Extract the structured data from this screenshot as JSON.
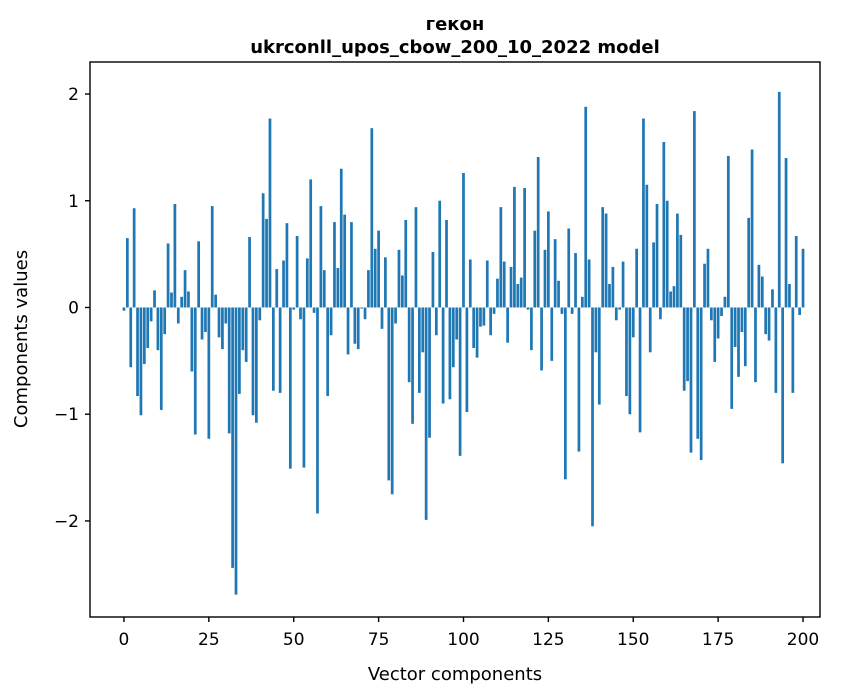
{
  "figure": {
    "title_line1": "гекон",
    "title_line2": "ukrconll_upos_cbow_200_10_2022 model",
    "xlabel": "Vector components",
    "ylabel": "Components values"
  },
  "chart_data": {
    "type": "bar",
    "title": "гекон — ukrconll_upos_cbow_200_10_2022 model",
    "xlabel": "Vector components",
    "ylabel": "Components values",
    "x_start": 0,
    "x_step": 1,
    "bar_color": "#1f77b4",
    "background": "#ffffff",
    "grid": false,
    "legend": false,
    "xticks": [
      0,
      25,
      50,
      75,
      100,
      125,
      150,
      175,
      200
    ],
    "yticks": [
      -2,
      -1,
      0,
      1,
      2
    ],
    "xlim": [
      -10,
      205
    ],
    "ylim": [
      -2.9,
      2.3
    ],
    "values": [
      -0.03,
      0.65,
      -0.56,
      0.93,
      -0.83,
      -1.01,
      -0.53,
      -0.38,
      -0.13,
      0.16,
      -0.4,
      -0.96,
      -0.25,
      0.6,
      0.14,
      0.97,
      -0.15,
      0.1,
      0.35,
      0.15,
      -0.6,
      -1.19,
      0.62,
      -0.3,
      -0.23,
      -1.23,
      0.95,
      0.12,
      -0.28,
      -0.39,
      -0.15,
      -1.18,
      -2.44,
      -2.69,
      -0.81,
      -0.4,
      -0.51,
      0.66,
      -1.01,
      -1.08,
      -0.12,
      1.07,
      0.83,
      1.77,
      -0.78,
      0.36,
      -0.8,
      0.44,
      0.79,
      -1.51,
      -0.02,
      0.67,
      -0.11,
      -1.5,
      0.46,
      1.2,
      -0.05,
      -1.93,
      0.95,
      0.35,
      -0.83,
      -0.26,
      0.8,
      0.37,
      1.3,
      0.87,
      -0.44,
      0.8,
      -0.34,
      -0.39,
      -0.01,
      -0.11,
      0.35,
      1.68,
      0.55,
      0.72,
      -0.2,
      0.47,
      -1.62,
      -1.75,
      -0.15,
      0.54,
      0.3,
      0.82,
      -0.7,
      -1.09,
      0.94,
      -0.8,
      -0.42,
      -1.99,
      -1.22,
      0.52,
      -0.26,
      1.0,
      -0.9,
      0.82,
      -0.86,
      -0.56,
      -0.3,
      -1.39,
      1.26,
      -0.98,
      0.45,
      -0.38,
      -0.47,
      -0.18,
      -0.17,
      0.44,
      -0.26,
      -0.06,
      0.27,
      0.94,
      0.43,
      -0.33,
      0.38,
      1.13,
      0.22,
      0.28,
      1.12,
      -0.02,
      -0.4,
      0.72,
      1.41,
      -0.59,
      0.54,
      0.9,
      -0.5,
      0.64,
      0.25,
      -0.06,
      -1.61,
      0.74,
      -0.06,
      0.51,
      -1.35,
      0.1,
      1.88,
      0.45,
      -2.05,
      -0.42,
      -0.91,
      0.94,
      0.88,
      0.22,
      0.38,
      -0.12,
      -0.02,
      0.43,
      -0.83,
      -1.0,
      -0.28,
      0.55,
      -1.17,
      1.77,
      1.15,
      -0.42,
      0.61,
      0.97,
      -0.11,
      1.55,
      1.0,
      0.15,
      0.2,
      0.88,
      0.68,
      -0.78,
      -0.69,
      -1.36,
      1.84,
      -1.23,
      -1.43,
      0.41,
      0.55,
      -0.12,
      -0.51,
      -0.29,
      -0.08,
      0.1,
      1.42,
      -0.95,
      -0.37,
      -0.65,
      -0.23,
      -0.55,
      0.84,
      1.48,
      -0.7,
      0.4,
      0.29,
      -0.25,
      -0.31,
      0.17,
      -0.8,
      2.02,
      -1.46,
      1.4,
      0.22,
      -0.8,
      0.67,
      -0.07,
      0.55
    ]
  },
  "layout_text": {
    "plot_border_color": "#000000"
  }
}
